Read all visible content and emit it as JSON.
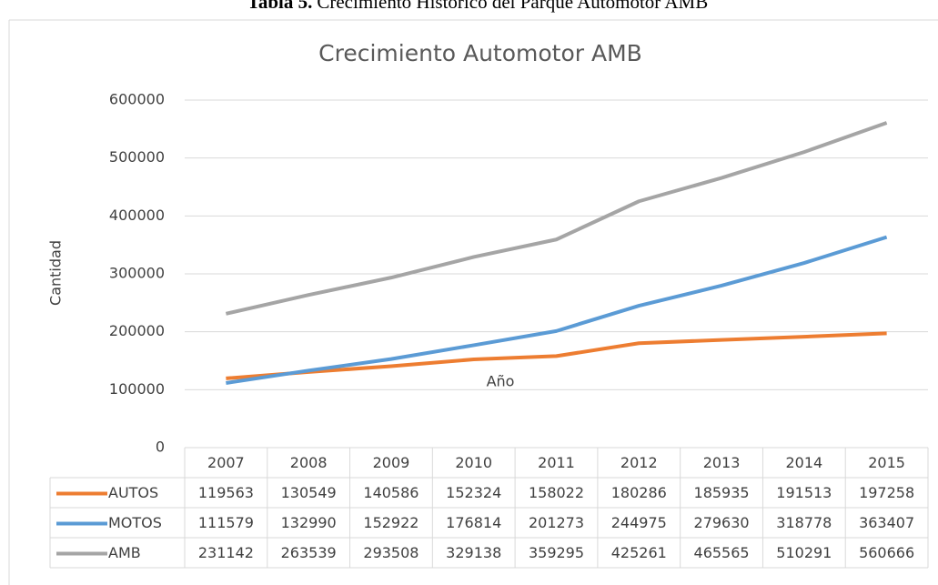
{
  "caption": {
    "label": "Tabla 5.",
    "text": "Crecimiento Histórico del Parque Automotor AMB"
  },
  "chart_data": {
    "type": "line",
    "title": "Crecimiento Automotor AMB",
    "ylabel": "Cantidad",
    "annotation": "Año",
    "categories": [
      "2007",
      "2008",
      "2009",
      "2010",
      "2011",
      "2012",
      "2013",
      "2014",
      "2015"
    ],
    "series": [
      {
        "name": "AUTOS",
        "color": "#ed7d31",
        "values": [
          119563,
          130549,
          140586,
          152324,
          158022,
          180286,
          185935,
          191513,
          197258
        ]
      },
      {
        "name": "MOTOS",
        "color": "#5b9bd5",
        "values": [
          111579,
          132990,
          152922,
          176814,
          201273,
          244975,
          279630,
          318778,
          363407
        ]
      },
      {
        "name": "AMB",
        "color": "#a5a5a5",
        "values": [
          231142,
          263539,
          293508,
          329138,
          359295,
          425261,
          465565,
          510291,
          560666
        ]
      }
    ],
    "ylim": [
      0,
      600000
    ],
    "yticks": [
      0,
      100000,
      200000,
      300000,
      400000,
      500000,
      600000
    ],
    "grid": true,
    "data_table": true
  }
}
